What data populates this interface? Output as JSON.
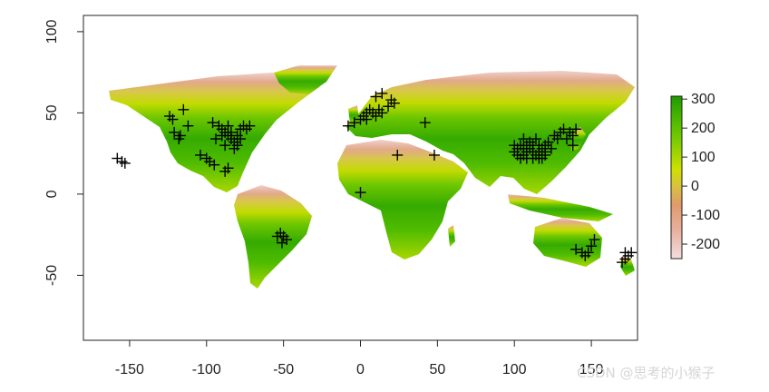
{
  "map": {
    "x_axis": {
      "range": [
        -180,
        180
      ],
      "ticks": [
        -150,
        -100,
        -50,
        0,
        50,
        100,
        150
      ],
      "tick_labels": [
        "-150",
        "-100",
        "-50",
        "0",
        "50",
        "100",
        "150"
      ]
    },
    "y_axis": {
      "range": [
        -90,
        110
      ],
      "ticks": [
        -50,
        0,
        50,
        100
      ],
      "tick_labels": [
        "-50",
        "0",
        "50",
        "100"
      ]
    },
    "colorbar": {
      "ticks": [
        300,
        200,
        100,
        0,
        -100,
        -200
      ],
      "tick_labels": [
        "300",
        "200",
        "100",
        "0",
        "-100",
        "-200"
      ],
      "range": [
        -250,
        310
      ],
      "colors": [
        "#f2dede",
        "#e8b4a0",
        "#e09a6c",
        "#d8bf3a",
        "#cfe000",
        "#8fd400",
        "#4bb800",
        "#1f9a00"
      ]
    },
    "raster_colors": {
      "cold": "#e3b3a6",
      "temperate": "#d6d600",
      "warm": "#47b300"
    },
    "marker": {
      "symbol": "+",
      "color": "#000000"
    }
  },
  "watermark": "CSDN @思考的小猴子"
}
